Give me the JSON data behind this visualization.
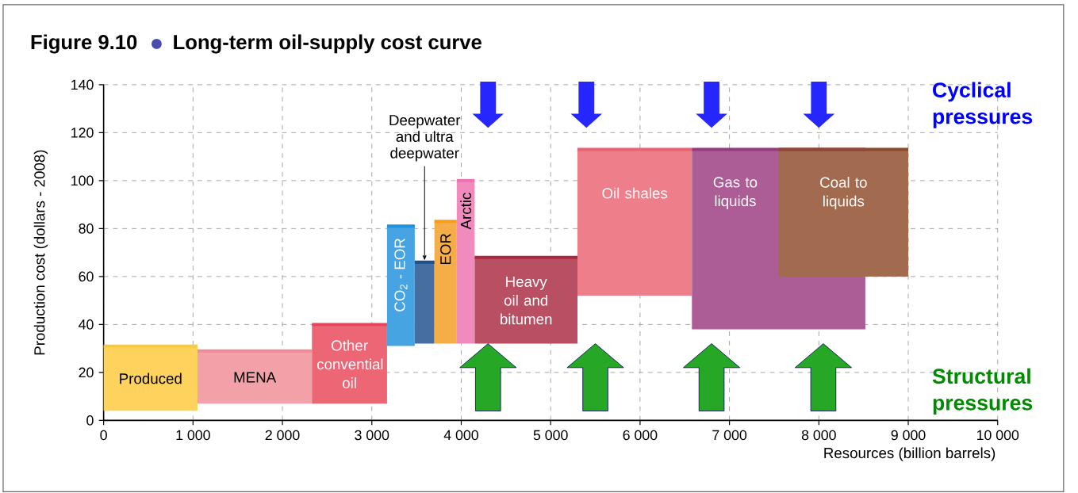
{
  "chart_data": {
    "type": "line",
    "title": "Figure 9.10",
    "subtitle": "Long-term oil-supply cost curve",
    "xlabel": "Resources (billion barrels)",
    "ylabel": "Production cost (dollars - 2008)",
    "xlim": [
      0,
      10000
    ],
    "ylim": [
      0,
      140
    ],
    "xticks": [
      0,
      {
        "value": 1000,
        "label": "1 000"
      },
      {
        "value": 2000,
        "label": "2 000"
      },
      {
        "value": 3000,
        "label": "3 000"
      },
      {
        "value": 4000,
        "label": "4 000"
      },
      {
        "value": 5000,
        "label": "5 000"
      },
      {
        "value": 6000,
        "label": "6 000"
      },
      {
        "value": 7000,
        "label": "7 000"
      },
      {
        "value": 8000,
        "label": "8 000"
      },
      {
        "value": 9000,
        "label": "9 000"
      },
      {
        "value": 10000,
        "label": "10 000"
      }
    ],
    "yticks": [
      0,
      20,
      40,
      60,
      80,
      100,
      120,
      140
    ],
    "grid": true,
    "series": [
      {
        "name": "Produced",
        "color": "#fcc93b",
        "x": [
          0,
          1050
        ],
        "values": [
          31,
          31
        ],
        "upper": [
          31,
          31
        ],
        "lower": [
          4,
          4
        ]
      },
      {
        "name": "MENA",
        "color": "#f08c96",
        "x": [
          1050,
          2330
        ],
        "values": [
          29,
          29
        ],
        "upper": [
          29,
          29
        ],
        "lower": [
          7,
          7
        ]
      },
      {
        "name": "Other convential oil",
        "color": "#e84457",
        "x": [
          2330,
          3170
        ],
        "values": [
          40,
          40
        ],
        "upper": [
          40,
          40
        ],
        "lower": [
          7,
          7
        ]
      },
      {
        "name": "CO$_{2}$ - EOR",
        "color": "#1e90dc",
        "x": [
          3170,
          3480
        ],
        "values": [
          81,
          81
        ],
        "upper": [
          81,
          81
        ],
        "lower": [
          31,
          31
        ]
      },
      {
        "color": "#1f4e8c",
        "x": [
          3480,
          3700
        ],
        "values": [
          66,
          66
        ],
        "upper": [
          66,
          66
        ],
        "lower": [
          32,
          32
        ]
      },
      {
        "name": "EOR",
        "color": "#f39c1e",
        "x": [
          3700,
          3950
        ],
        "values": [
          83,
          83
        ],
        "upper": [
          83,
          83
        ],
        "lower": [
          32,
          32
        ]
      },
      {
        "name": "Arctic",
        "color": "#ee72b0",
        "x": [
          3950,
          4150
        ],
        "values": [
          100,
          100
        ],
        "upper": [
          100,
          100
        ],
        "lower": [
          32,
          32
        ]
      },
      {
        "name": "Heavy oil and bitumen",
        "color": "#a8283f",
        "x": [
          4150,
          5300
        ],
        "values": [
          68,
          68
        ],
        "upper": [
          68,
          68
        ],
        "lower": [
          32,
          32
        ]
      },
      {
        "name": "Oil shales",
        "color": "#ec6272",
        "x": [
          5300,
          6580
        ],
        "values": [
          113,
          113
        ],
        "upper": [
          113,
          113
        ],
        "lower": [
          52,
          52
        ]
      },
      {
        "name": "Gas to liquids",
        "color": "#9a3a7e",
        "x": [
          6580,
          8520
        ],
        "values": [
          113,
          113
        ],
        "upper": [
          113,
          113
        ],
        "lower": [
          38,
          38
        ]
      },
      {
        "name": "Coal to liquids",
        "color": "#8e4a2a",
        "x": [
          7550,
          9000
        ],
        "values": [
          113,
          113
        ],
        "upper": [
          113,
          113
        ],
        "lower": [
          60,
          60
        ]
      }
    ],
    "annotations": [
      "Cyclical pressures",
      "Structural pressures",
      {
        "text": "Deepwater and ultra deepwater",
        "x": 3590,
        "y": 66
      }
    ]
  }
}
